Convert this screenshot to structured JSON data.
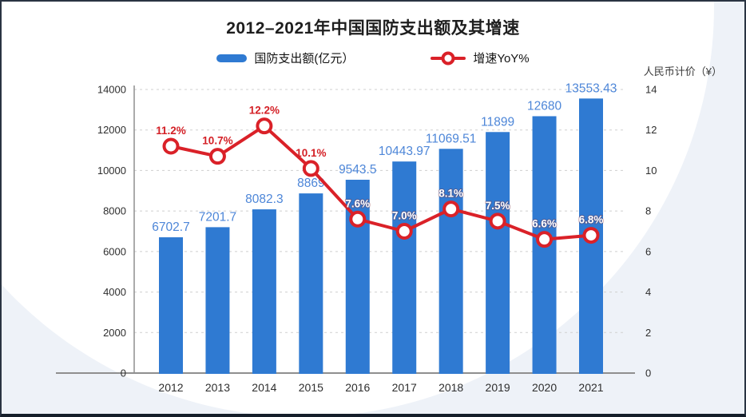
{
  "chart_data": {
    "type": "bar+line",
    "title": "2012–2021年中国国防支出额及其增速",
    "categories": [
      "2012",
      "2013",
      "2014",
      "2015",
      "2016",
      "2017",
      "2018",
      "2019",
      "2020",
      "2021"
    ],
    "series": [
      {
        "name": "国防支出额(亿元）",
        "type": "bar",
        "axis": "left",
        "color": "#2f7ad2",
        "label_color": "#4d86d8",
        "values": [
          6702.7,
          7201.7,
          8082.3,
          8869,
          9543.5,
          10443.97,
          11069.51,
          11899,
          12680,
          13553.43
        ],
        "value_labels": [
          "6702.7",
          "7201.7",
          "8082.3",
          "8869",
          "9543.5",
          "10443.97",
          "11069.51",
          "11899",
          "12680",
          "13553.43"
        ]
      },
      {
        "name": "增速YoY%",
        "type": "line",
        "axis": "right",
        "color": "#da2128",
        "marker": "donut",
        "values": [
          11.2,
          10.7,
          12.2,
          10.1,
          7.6,
          7.0,
          8.1,
          7.5,
          6.6,
          6.8
        ],
        "value_labels": [
          "11.2%",
          "10.7%",
          "12.2%",
          "10.1%",
          "7.6%",
          "7.0%",
          "8.1%",
          "7.5%",
          "6.6%",
          "6.8%"
        ],
        "label_colors": [
          "#d42026",
          "#d42026",
          "#d42026",
          "#d42026",
          "#ffffff",
          "#ffffff",
          "#ffffff",
          "#ffffff",
          "#ffffff",
          "#ffffff"
        ]
      }
    ],
    "left_axis": {
      "min": 0,
      "max": 14000,
      "step": 2000,
      "tick_labels": [
        "0",
        "2000",
        "4000",
        "6000",
        "8000",
        "10000",
        "12000",
        "14000"
      ]
    },
    "right_axis": {
      "min": 0,
      "max": 14,
      "step": 2,
      "tick_labels": [
        "0",
        "2",
        "4",
        "6",
        "8",
        "10",
        "12",
        "14"
      ],
      "caption": "人民币计价（¥）"
    },
    "grid": "dashed horizontal",
    "legend_position": "top"
  }
}
